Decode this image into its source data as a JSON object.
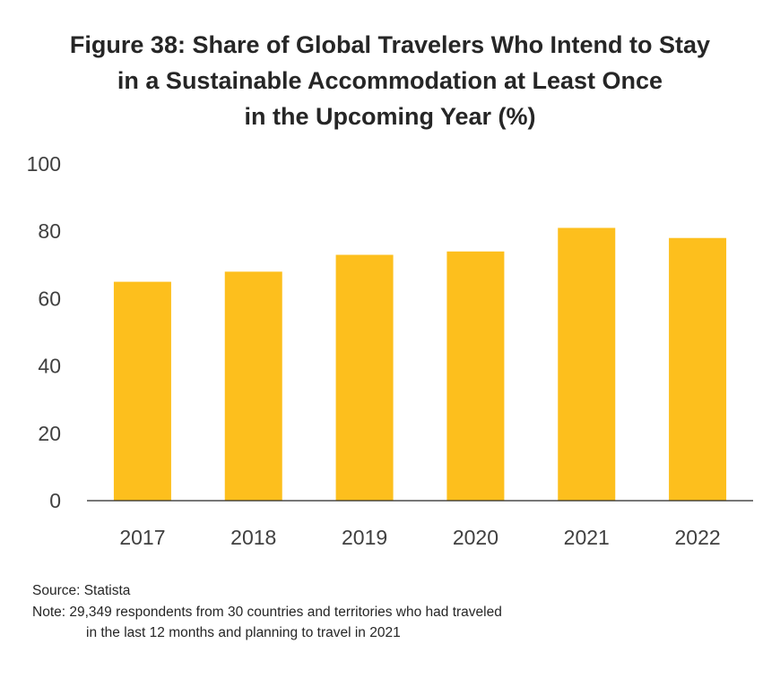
{
  "title_lines": [
    "Figure 38: Share of Global Travelers Who Intend to Stay",
    "in a Sustainable Accommodation at Least Once",
    "in the Upcoming Year (%)"
  ],
  "chart_data": {
    "type": "bar",
    "title": "Figure 38: Share of Global Travelers Who Intend to Stay in a Sustainable Accommodation at Least Once in the Upcoming Year (%)",
    "categories": [
      "2017",
      "2018",
      "2019",
      "2020",
      "2021",
      "2022"
    ],
    "values": [
      65,
      68,
      73,
      74,
      81,
      78
    ],
    "ylim": [
      0,
      100
    ],
    "yticks": [
      "0",
      "20",
      "40",
      "60",
      "80",
      "100"
    ],
    "xlabel": "",
    "ylabel": "",
    "grid": false,
    "legend": "none",
    "bar_color": "#FDBF1D"
  },
  "footnotes": {
    "source": "Source: Statista",
    "note_line1": "Note: 29,349 respondents from 30 countries and territories who had traveled",
    "note_line2": "in the last 12 months and planning to travel in 2021"
  }
}
